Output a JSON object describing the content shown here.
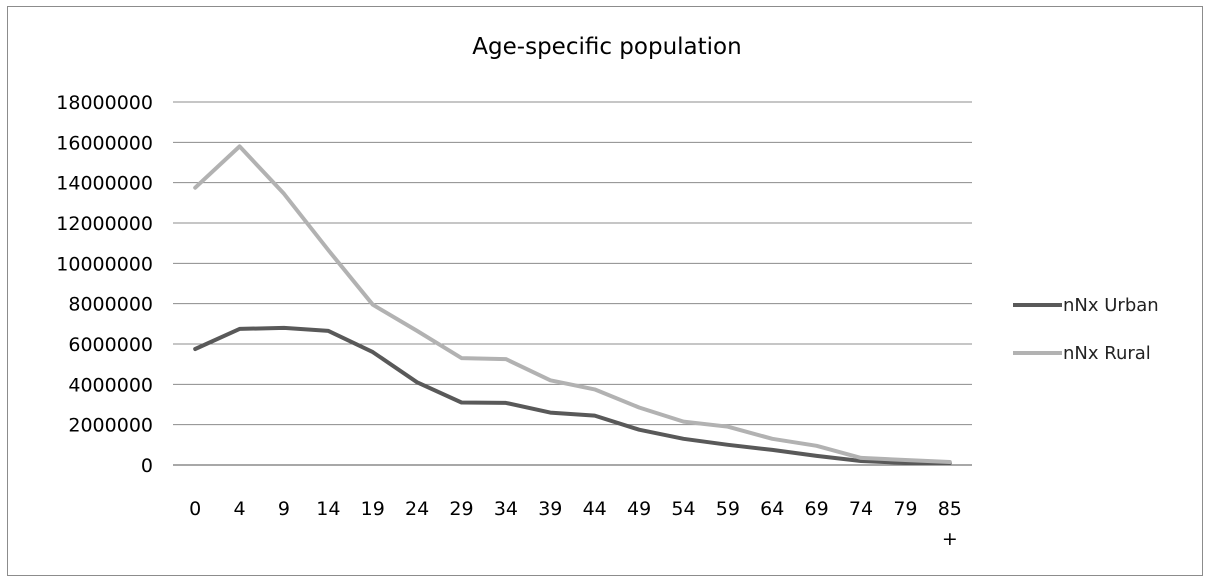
{
  "chart_data": {
    "type": "line",
    "title": "Age-specific population",
    "xlabel": "",
    "ylabel": "",
    "categories": [
      "0",
      "4",
      "9",
      "14",
      "19",
      "24",
      "29",
      "34",
      "39",
      "44",
      "49",
      "54",
      "59",
      "64",
      "69",
      "74",
      "79",
      "85 +"
    ],
    "ylim": [
      0,
      18000000
    ],
    "yticks": [
      "0",
      "2000000",
      "4000000",
      "6000000",
      "8000000",
      "10000000",
      "12000000",
      "14000000",
      "16000000",
      "18000000"
    ],
    "grid": true,
    "legend_position": "right",
    "series": [
      {
        "name": "nNx Urban",
        "color": "#595959",
        "values": [
          5750000,
          6750000,
          6800000,
          6650000,
          5600000,
          4100000,
          3100000,
          3080000,
          2600000,
          2450000,
          1750000,
          1300000,
          1000000,
          750000,
          450000,
          200000,
          100000,
          100000
        ]
      },
      {
        "name": "nNx Rural",
        "color": "#b2b2b2",
        "values": [
          13750000,
          15800000,
          13450000,
          10650000,
          7950000,
          6650000,
          5300000,
          5250000,
          4200000,
          3750000,
          2850000,
          2150000,
          1900000,
          1300000,
          950000,
          350000,
          250000,
          150000
        ]
      }
    ]
  }
}
